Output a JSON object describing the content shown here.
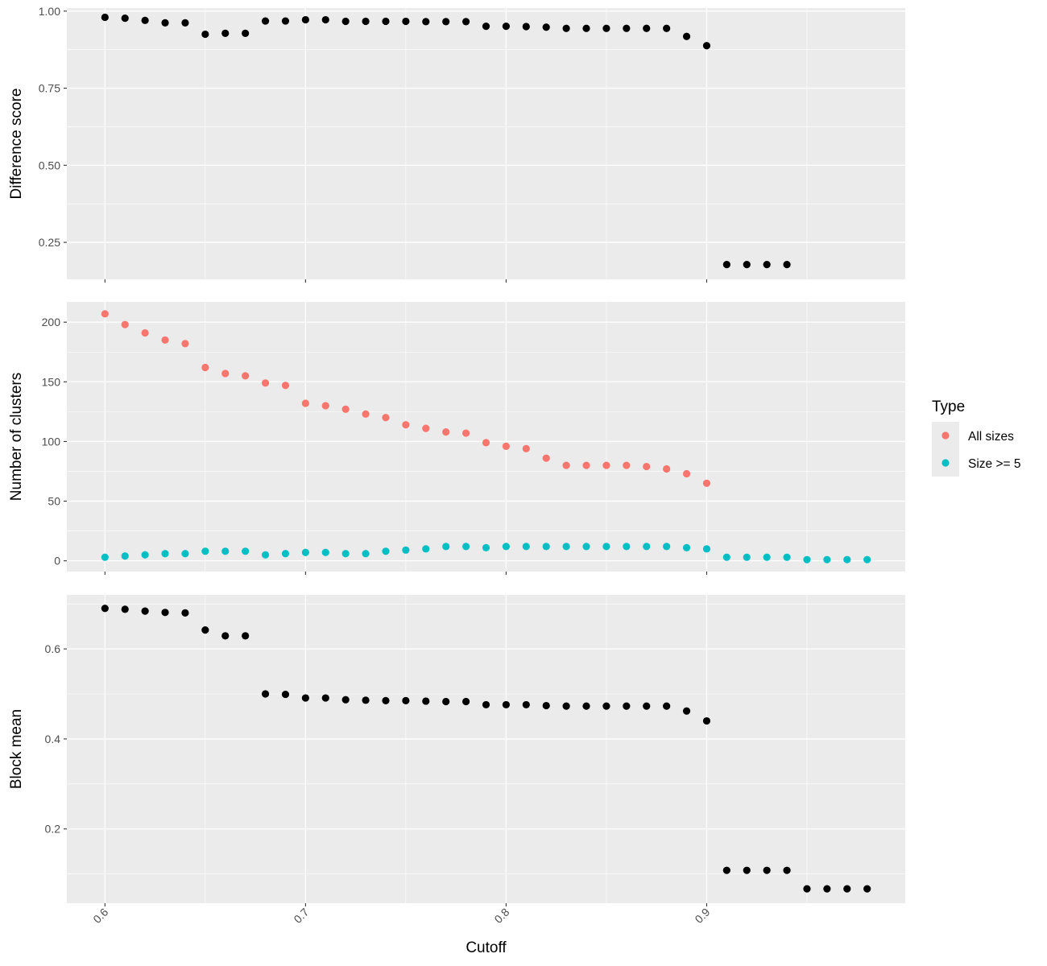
{
  "chart_data": [
    {
      "type": "scatter",
      "ylabel": "Difference score",
      "ylim": [
        0.13,
        1.01
      ],
      "yticks": [
        0.25,
        0.5,
        0.75,
        1.0
      ],
      "ytick_labels": [
        "0.25",
        "0.50",
        "0.75",
        "1.00"
      ],
      "grid": true,
      "series": [
        {
          "color": "#000000",
          "x": [
            0.6,
            0.61,
            0.62,
            0.63,
            0.64,
            0.65,
            0.66,
            0.67,
            0.68,
            0.69,
            0.7,
            0.71,
            0.72,
            0.73,
            0.74,
            0.75,
            0.76,
            0.77,
            0.78,
            0.79,
            0.8,
            0.81,
            0.82,
            0.83,
            0.84,
            0.85,
            0.86,
            0.87,
            0.88,
            0.89,
            0.9,
            0.91,
            0.92,
            0.93,
            0.94
          ],
          "y": [
            0.98,
            0.977,
            0.97,
            0.962,
            0.962,
            0.925,
            0.928,
            0.928,
            0.968,
            0.968,
            0.972,
            0.972,
            0.967,
            0.967,
            0.967,
            0.967,
            0.966,
            0.966,
            0.966,
            0.951,
            0.951,
            0.95,
            0.948,
            0.944,
            0.944,
            0.944,
            0.944,
            0.944,
            0.944,
            0.918,
            0.888,
            0.178,
            0.178,
            0.178,
            0.178
          ]
        }
      ]
    },
    {
      "type": "scatter",
      "ylabel": "Number of clusters",
      "ylim": [
        -9,
        217
      ],
      "yticks": [
        0,
        50,
        100,
        150,
        200
      ],
      "ytick_labels": [
        "0",
        "50",
        "100",
        "150",
        "200"
      ],
      "grid": true,
      "legend": {
        "title": "Type",
        "position": "right"
      },
      "series": [
        {
          "name": "All sizes",
          "color": "#F8766D",
          "x": [
            0.6,
            0.61,
            0.62,
            0.63,
            0.64,
            0.65,
            0.66,
            0.67,
            0.68,
            0.69,
            0.7,
            0.71,
            0.72,
            0.73,
            0.74,
            0.75,
            0.76,
            0.77,
            0.78,
            0.79,
            0.8,
            0.81,
            0.82,
            0.83,
            0.84,
            0.85,
            0.86,
            0.87,
            0.88,
            0.89,
            0.9
          ],
          "y": [
            207,
            198,
            191,
            185,
            182,
            162,
            157,
            155,
            149,
            147,
            132,
            130,
            127,
            123,
            120,
            114,
            111,
            108,
            107,
            99,
            96,
            94,
            86,
            80,
            80,
            80,
            80,
            79,
            77,
            73,
            65
          ]
        },
        {
          "name": "Size >= 5",
          "color": "#00BFC4",
          "x": [
            0.6,
            0.61,
            0.62,
            0.63,
            0.64,
            0.65,
            0.66,
            0.67,
            0.68,
            0.69,
            0.7,
            0.71,
            0.72,
            0.73,
            0.74,
            0.75,
            0.76,
            0.77,
            0.78,
            0.79,
            0.8,
            0.81,
            0.82,
            0.83,
            0.84,
            0.85,
            0.86,
            0.87,
            0.88,
            0.89,
            0.9,
            0.91,
            0.92,
            0.93,
            0.94,
            0.95,
            0.96,
            0.97,
            0.98
          ],
          "y": [
            3,
            4,
            5,
            6,
            6,
            8,
            8,
            8,
            5,
            6,
            7,
            7,
            6,
            6,
            8,
            9,
            10,
            12,
            12,
            11,
            12,
            12,
            12,
            12,
            12,
            12,
            12,
            12,
            12,
            11,
            10,
            3,
            3,
            3,
            3,
            1,
            1,
            1,
            1
          ]
        }
      ]
    },
    {
      "type": "scatter",
      "ylabel": "Block mean",
      "xlabel": "Cutoff",
      "ylim": [
        0.035,
        0.72
      ],
      "yticks": [
        0.2,
        0.4,
        0.6
      ],
      "ytick_labels": [
        "0.2",
        "0.4",
        "0.6"
      ],
      "grid": true,
      "series": [
        {
          "color": "#000000",
          "x": [
            0.6,
            0.61,
            0.62,
            0.63,
            0.64,
            0.65,
            0.66,
            0.67,
            0.68,
            0.69,
            0.7,
            0.71,
            0.72,
            0.73,
            0.74,
            0.75,
            0.76,
            0.77,
            0.78,
            0.79,
            0.8,
            0.81,
            0.82,
            0.83,
            0.84,
            0.85,
            0.86,
            0.87,
            0.88,
            0.89,
            0.9,
            0.91,
            0.92,
            0.93,
            0.94,
            0.95,
            0.96,
            0.97,
            0.98
          ],
          "y": [
            0.69,
            0.688,
            0.684,
            0.681,
            0.68,
            0.642,
            0.629,
            0.629,
            0.5,
            0.499,
            0.491,
            0.491,
            0.487,
            0.486,
            0.485,
            0.485,
            0.484,
            0.483,
            0.483,
            0.476,
            0.476,
            0.476,
            0.474,
            0.473,
            0.473,
            0.473,
            0.473,
            0.473,
            0.473,
            0.462,
            0.44,
            0.108,
            0.108,
            0.108,
            0.108,
            0.067,
            0.067,
            0.067,
            0.067
          ]
        }
      ]
    }
  ],
  "shared_x": {
    "xlim": [
      0.581,
      0.999
    ],
    "ticks": [
      0.6,
      0.7,
      0.8,
      0.9
    ],
    "tick_labels": [
      "0.6",
      "0.7",
      "0.8",
      "0.9"
    ],
    "label": "Cutoff"
  }
}
